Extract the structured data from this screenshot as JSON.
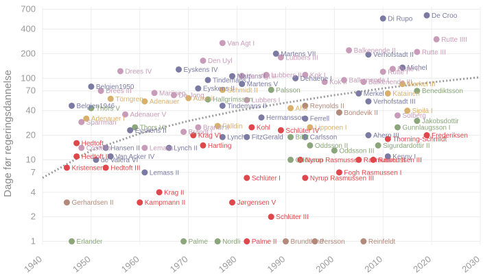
{
  "chart_data": {
    "type": "scatter",
    "ylabel": "Dage før regeringsdannelse",
    "xlabel": "",
    "y_scale": "log",
    "xlim": [
      1940,
      2030
    ],
    "ylim": [
      0.9,
      750
    ],
    "x_ticks": [
      1940,
      1950,
      1960,
      1970,
      1980,
      1990,
      2000,
      2010,
      2020,
      2030
    ],
    "y_ticks": [
      1,
      2,
      4,
      7,
      10,
      20,
      40,
      70,
      100,
      200,
      400,
      700
    ],
    "grid": true,
    "trend_line": [
      [
        1940,
        6
      ],
      [
        1950,
        13
      ],
      [
        1960,
        21
      ],
      [
        1970,
        30
      ],
      [
        1980,
        40
      ],
      [
        1990,
        50
      ],
      [
        2000,
        62
      ],
      [
        2010,
        75
      ],
      [
        2020,
        89
      ],
      [
        2030,
        103
      ]
    ],
    "colors": {
      "Belgien": "#7a7aa3",
      "Holland": "#c89cb8",
      "Danmark": "#e0474c",
      "Sverige": "#8aa67a",
      "Norge": "#d9b06b",
      "Irland": "#b3897a"
    },
    "points": [
      {
        "label": "Di Rupo",
        "x": 2010,
        "y": 540,
        "group": "Belgien"
      },
      {
        "label": "De Croo",
        "x": 2019,
        "y": 590,
        "group": "Belgien"
      },
      {
        "label": "Rutte IIII",
        "x": 2021,
        "y": 300,
        "group": "Holland"
      },
      {
        "label": "Van Agt I",
        "x": 1977,
        "y": 270,
        "group": "Holland"
      },
      {
        "label": "Balkenende II",
        "x": 2003,
        "y": 220,
        "group": "Holland"
      },
      {
        "label": "Rutte III",
        "x": 2017,
        "y": 210,
        "group": "Holland"
      },
      {
        "label": "Martens VII",
        "x": 1988,
        "y": 200,
        "group": "Belgien"
      },
      {
        "label": "Verhofstadt II",
        "x": 2007,
        "y": 195,
        "group": "Belgien"
      },
      {
        "label": "Lubbers III",
        "x": 1989,
        "y": 180,
        "group": "Holland"
      },
      {
        "label": "Den Uyl",
        "x": 1973,
        "y": 164,
        "group": "Holland"
      },
      {
        "label": "Drees IV",
        "x": 1956,
        "y": 122,
        "group": "Holland"
      },
      {
        "label": "Eyskens IV",
        "x": 1968,
        "y": 128,
        "group": "Belgien"
      },
      {
        "label": "Michel",
        "x": 2014,
        "y": 135,
        "group": "Belgien"
      },
      {
        "label": "Rutte I",
        "x": 2010,
        "y": 120,
        "group": "Holland"
      },
      {
        "label": "Rutte II",
        "x": 2012,
        "y": 130,
        "group": "Holland"
      },
      {
        "label": "Lubbers II",
        "x": 1986,
        "y": 110,
        "group": "Holland"
      },
      {
        "label": "Kok I",
        "x": 1994,
        "y": 110,
        "group": "Holland"
      },
      {
        "label": "Martens I",
        "x": 1979,
        "y": 106,
        "group": "Belgien"
      },
      {
        "label": "Van Agt II",
        "x": 1981,
        "y": 107,
        "group": "Holland"
      },
      {
        "label": "Tindemans I",
        "x": 1974,
        "y": 95,
        "group": "Belgien"
      },
      {
        "label": "Dehaene I",
        "x": 1992,
        "y": 100,
        "group": "Belgien"
      },
      {
        "label": "Kok II",
        "x": 1998,
        "y": 90,
        "group": "Holland"
      },
      {
        "label": "Balkenende I",
        "x": 2002,
        "y": 95,
        "group": "Holland"
      },
      {
        "label": "Balkenende III",
        "x": 2006,
        "y": 90,
        "group": "Holland"
      },
      {
        "label": "Merkel III",
        "x": 2014,
        "y": 85,
        "group": "Norge"
      },
      {
        "label": "Martens V",
        "x": 1981,
        "y": 85,
        "group": "Belgien"
      },
      {
        "label": "Belgien1950",
        "x": 1950,
        "y": 79,
        "group": "Belgien"
      },
      {
        "label": "Eyskens II",
        "x": 1972,
        "y": 75,
        "group": "Belgien"
      },
      {
        "label": "Drees III",
        "x": 1952,
        "y": 70,
        "group": "Holland"
      },
      {
        "label": "Schmidt II",
        "x": 1977,
        "y": 72,
        "group": "Norge"
      },
      {
        "label": "Palsson",
        "x": 1987,
        "y": 72,
        "group": "Sverige"
      },
      {
        "label": "Merkel",
        "x": 2005,
        "y": 65,
        "group": "Belgien"
      },
      {
        "label": "Katainen",
        "x": 2011,
        "y": 65,
        "group": "Norge"
      },
      {
        "label": "Benediktsson",
        "x": 2017,
        "y": 70,
        "group": "Sverige"
      },
      {
        "label": "De Jong",
        "x": 1967,
        "y": 62,
        "group": "Holland"
      },
      {
        "label": "Marijnen",
        "x": 1963,
        "y": 66,
        "group": "Holland"
      },
      {
        "label": "Törngren",
        "x": 1954,
        "y": 56,
        "group": "Norge"
      },
      {
        "label": "Auxerit",
        "x": 1970,
        "y": 57,
        "group": "Norge"
      },
      {
        "label": "Hallgrímsson",
        "x": 1974,
        "y": 55,
        "group": "Sverige"
      },
      {
        "label": "Lubbers I",
        "x": 1982,
        "y": 54,
        "group": "Holland"
      },
      {
        "label": "Verhofstadt III",
        "x": 2007,
        "y": 52,
        "group": "Belgien"
      },
      {
        "label": "Adenauer",
        "x": 1961,
        "y": 52,
        "group": "Norge"
      },
      {
        "label": "Belgien1946",
        "x": 1946,
        "y": 46,
        "group": "Belgien"
      },
      {
        "label": "Thors V",
        "x": 1950,
        "y": 43,
        "group": "Sverige"
      },
      {
        "label": "Tindemans II",
        "x": 1977,
        "y": 46,
        "group": "Belgien"
      },
      {
        "label": "Reynolds II",
        "x": 1994,
        "y": 46,
        "group": "Irland"
      },
      {
        "label": "Aho",
        "x": 1991,
        "y": 43,
        "group": "Norge"
      },
      {
        "label": "Adenauer V",
        "x": 1957,
        "y": 36,
        "group": "Holland"
      },
      {
        "label": "Bondevik II",
        "x": 2001,
        "y": 38,
        "group": "Irland"
      },
      {
        "label": "Sipilä I",
        "x": 2015,
        "y": 40,
        "group": "Norge"
      },
      {
        "label": "Solberg",
        "x": 2013,
        "y": 35,
        "group": "Holland"
      },
      {
        "label": "Jakobsdottir",
        "x": 2017,
        "y": 30,
        "group": "Sverige"
      },
      {
        "label": "Adenauer I",
        "x": 1949,
        "y": 32,
        "group": "Norge"
      },
      {
        "label": "Sparrman",
        "x": 1948,
        "y": 29,
        "group": "Holland"
      },
      {
        "label": "Hermansson",
        "x": 1985,
        "y": 33,
        "group": "Belgien"
      },
      {
        "label": "Ferrell",
        "x": 1994,
        "y": 32,
        "group": "Belgien"
      },
      {
        "label": "Thors VI",
        "x": 1959,
        "y": 25,
        "group": "Sverige"
      },
      {
        "label": "Gunnlaugsson I",
        "x": 2013,
        "y": 25,
        "group": "Sverige"
      },
      {
        "label": "Brandt II",
        "x": 1972,
        "y": 25,
        "group": "Holland"
      },
      {
        "label": "Fälldin",
        "x": 1976,
        "y": 26,
        "group": "Norge"
      },
      {
        "label": "Kohl",
        "x": 1983,
        "y": 25,
        "group": "Danmark"
      },
      {
        "label": "Lipponen I",
        "x": 1995,
        "y": 25,
        "group": "Norge"
      },
      {
        "label": "Eyskens II",
        "x": 1958,
        "y": 23,
        "group": "Belgien"
      },
      {
        "label": "Brandt I",
        "x": 1969,
        "y": 22,
        "group": "Holland"
      },
      {
        "label": "Schlüter IV",
        "x": 1989,
        "y": 23,
        "group": "Danmark"
      },
      {
        "label": "Ahern III",
        "x": 2007,
        "y": 20,
        "group": "Belgien"
      },
      {
        "label": "Frederiksen",
        "x": 2019,
        "y": 20,
        "group": "Danmark"
      },
      {
        "label": "Krag VI",
        "x": 1971,
        "y": 20,
        "group": "Danmark"
      },
      {
        "label": "Lynch",
        "x": 1977,
        "y": 19,
        "group": "Belgien"
      },
      {
        "label": "FitzGerald",
        "x": 1982,
        "y": 19,
        "group": "Belgien"
      },
      {
        "label": "Carlsson",
        "x": 1994,
        "y": 19,
        "group": "Belgien"
      },
      {
        "label": "Bildt",
        "x": 1991,
        "y": 19,
        "group": "Sverige"
      },
      {
        "label": "Thorning-Schmidt",
        "x": 2011,
        "y": 18,
        "group": "Danmark"
      },
      {
        "label": "Hedtoft",
        "x": 1947,
        "y": 16,
        "group": "Danmark"
      },
      {
        "label": "Costello",
        "x": 1948,
        "y": 14,
        "group": "Holland"
      },
      {
        "label": "Hansen II",
        "x": 1953,
        "y": 14,
        "group": "Belgien"
      },
      {
        "label": "Lemass",
        "x": 1961,
        "y": 14,
        "group": "Holland"
      },
      {
        "label": "Lynch II",
        "x": 1966,
        "y": 14,
        "group": "Belgien"
      },
      {
        "label": "Hartling",
        "x": 1973,
        "y": 15,
        "group": "Danmark"
      },
      {
        "label": "Oddsson II",
        "x": 1995,
        "y": 15,
        "group": "Sverige"
      },
      {
        "label": "Sigurdardottir II",
        "x": 2009,
        "y": 15,
        "group": "Sverige"
      },
      {
        "label": "Oddsson III",
        "x": 2000,
        "y": 13,
        "group": "Sverige"
      },
      {
        "label": "Hedtoft II",
        "x": 1947,
        "y": 11,
        "group": "Danmark"
      },
      {
        "label": "Van Acker IV",
        "x": 1954,
        "y": 11,
        "group": "Belgien"
      },
      {
        "label": "Kenny I",
        "x": 2011,
        "y": 11,
        "group": "Belgien"
      },
      {
        "label": "Rasmussen II",
        "x": 2005,
        "y": 10,
        "group": "Danmark"
      },
      {
        "label": "Rasmussen III",
        "x": 2008,
        "y": 10,
        "group": "Danmark"
      },
      {
        "label": "Oddsson",
        "x": 1991,
        "y": 10,
        "group": "Sverige"
      },
      {
        "label": "Nyrup Rasmussen I",
        "x": 1993,
        "y": 10,
        "group": "Danmark"
      },
      {
        "label": "de Valera VI",
        "x": 1951,
        "y": 10,
        "group": "Belgien"
      },
      {
        "label": "Kristensen",
        "x": 1945,
        "y": 8,
        "group": "Danmark"
      },
      {
        "label": "Hedtoft III",
        "x": 1953,
        "y": 8,
        "group": "Danmark"
      },
      {
        "label": "Lemass II",
        "x": 1961,
        "y": 7,
        "group": "Belgien"
      },
      {
        "label": "Fogh Rasmussen I",
        "x": 2001,
        "y": 7,
        "group": "Danmark"
      },
      {
        "label": "Schlüter I",
        "x": 1982,
        "y": 6,
        "group": "Danmark"
      },
      {
        "label": "Nyrup Rasmussen III",
        "x": 1994,
        "y": 6,
        "group": "Danmark"
      },
      {
        "label": "Krag II",
        "x": 1964,
        "y": 4,
        "group": "Danmark"
      },
      {
        "label": "Gerhardsen II",
        "x": 1945,
        "y": 3,
        "group": "Irland"
      },
      {
        "label": "Kampmann II",
        "x": 1960,
        "y": 3,
        "group": "Danmark"
      },
      {
        "label": "Jørgensen V",
        "x": 1979,
        "y": 3,
        "group": "Danmark"
      },
      {
        "label": "Schlüter III",
        "x": 1987,
        "y": 2,
        "group": "Danmark"
      },
      {
        "label": "Erlander",
        "x": 1946,
        "y": 1,
        "group": "Sverige"
      },
      {
        "label": "Palme",
        "x": 1969,
        "y": 1,
        "group": "Sverige"
      },
      {
        "label": "Nordli",
        "x": 1976,
        "y": 1,
        "group": "Sverige"
      },
      {
        "label": "Palme II",
        "x": 1982,
        "y": 1,
        "group": "Danmark"
      },
      {
        "label": "Brundtland",
        "x": 1990,
        "y": 1,
        "group": "Irland"
      },
      {
        "label": "Persson",
        "x": 1996,
        "y": 1,
        "group": "Irland"
      },
      {
        "label": "Reinfeldt",
        "x": 2006,
        "y": 1,
        "group": "Irland"
      }
    ]
  }
}
